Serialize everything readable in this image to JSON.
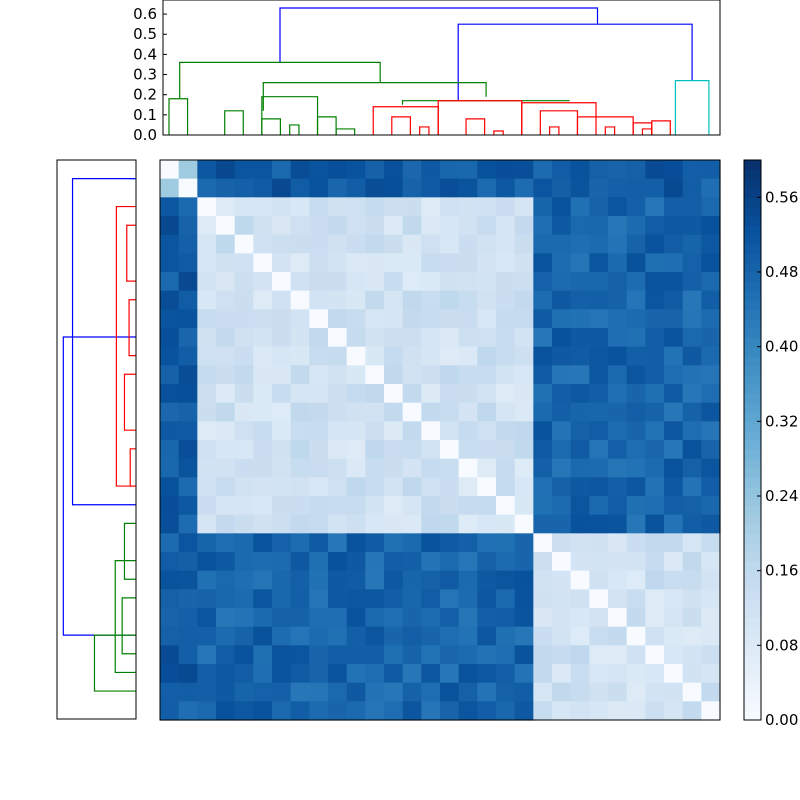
{
  "chart_data": [
    {
      "type": "dendrogram",
      "orientation": "top",
      "ylim": [
        0,
        0.65
      ],
      "y_ticks": [
        "0.0",
        "0.1",
        "0.2",
        "0.3",
        "0.4",
        "0.5",
        "0.6"
      ],
      "colors": {
        "link": "#0000ff",
        "cluster_a": "#008000",
        "cluster_b": "#ff0000",
        "cluster_c": "#00bfbf"
      },
      "links": [
        {
          "x": [
            2.1,
            2.1,
            7.8,
            7.8
          ],
          "y": [
            0.36,
            0.63,
            0.63,
            0.55
          ],
          "color": "link"
        },
        {
          "x": [
            5.3,
            5.3,
            9.5,
            9.5
          ],
          "y": [
            0.17,
            0.55,
            0.55,
            0.27
          ],
          "color": "link"
        },
        {
          "x": [
            0.3,
            0.3,
            3.9,
            3.9
          ],
          "y": [
            0.18,
            0.36,
            0.36,
            0.26
          ],
          "color": "cluster_a"
        },
        {
          "x": [
            1.8,
            1.8,
            5.8,
            5.8
          ],
          "y": [
            0.12,
            0.26,
            0.26,
            0.19
          ],
          "color": "cluster_a"
        },
        {
          "x": [
            4.3,
            4.3,
            7.3,
            7.3
          ],
          "y": [
            0.15,
            0.17,
            0.17,
            0.17
          ],
          "color": "cluster_a"
        },
        {
          "x": [
            9.2,
            9.2,
            9.8,
            9.8
          ],
          "y": [
            0.0,
            0.27,
            0.27,
            0.0
          ],
          "color": "cluster_c"
        }
      ],
      "leaf_count": 30
    },
    {
      "type": "dendrogram",
      "orientation": "left",
      "leaf_count": 30
    },
    {
      "type": "heatmap",
      "rows": 30,
      "cols": 30,
      "cluster_sizes": [
        2,
        18,
        10
      ],
      "block_means": [
        [
          0.24,
          0.5,
          0.5
        ],
        [
          0.5,
          0.12,
          0.48
        ],
        [
          0.5,
          0.48,
          0.12
        ]
      ],
      "colorscale": "Blues",
      "vmin": 0.0,
      "vmax": 0.6
    },
    {
      "type": "colorbar",
      "ticks": [
        "0.00",
        "0.08",
        "0.16",
        "0.24",
        "0.32",
        "0.40",
        "0.48",
        "0.56"
      ],
      "tick_values": [
        0.0,
        0.08,
        0.16,
        0.24,
        0.32,
        0.4,
        0.48,
        0.56
      ],
      "vmin": 0.0,
      "vmax": 0.6
    }
  ]
}
